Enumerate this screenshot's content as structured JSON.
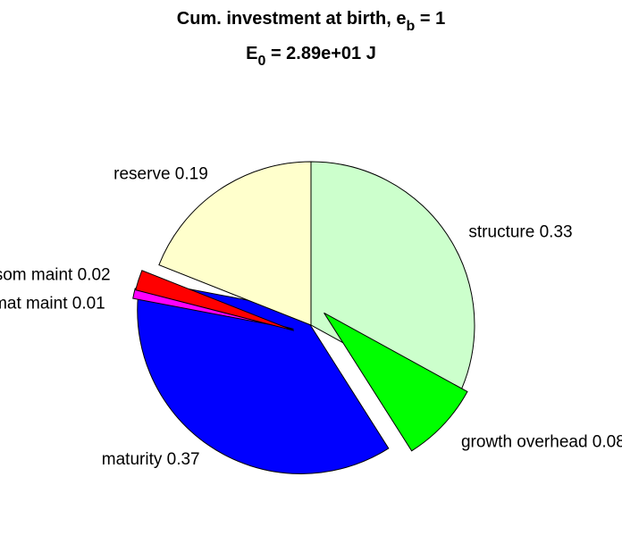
{
  "chart_data": {
    "type": "pie",
    "title": {
      "line1_main": "Cum. investment at birth, e",
      "line1_sub": "b",
      "line1_tail": " = 1",
      "line2_main": "E",
      "line2_sub": "0",
      "line2_tail": " = 2.89e+01 J"
    },
    "slices": [
      {
        "label": "structure 0.33",
        "value": 0.33,
        "color": "#ccffcc",
        "exploded": false
      },
      {
        "label": "growth overhead 0.08",
        "value": 0.08,
        "color": "#00ff00",
        "exploded": true
      },
      {
        "label": "maturity 0.37",
        "value": 0.37,
        "color": "#0000ff",
        "exploded": true
      },
      {
        "label": "mat maint 0.01",
        "value": 0.01,
        "color": "#ff00ff",
        "exploded": true
      },
      {
        "label": "som maint 0.02",
        "value": 0.02,
        "color": "#ff0000",
        "exploded": true
      },
      {
        "label": "reserve 0.19",
        "value": 0.19,
        "color": "#ffffcc",
        "exploded": false
      }
    ]
  }
}
